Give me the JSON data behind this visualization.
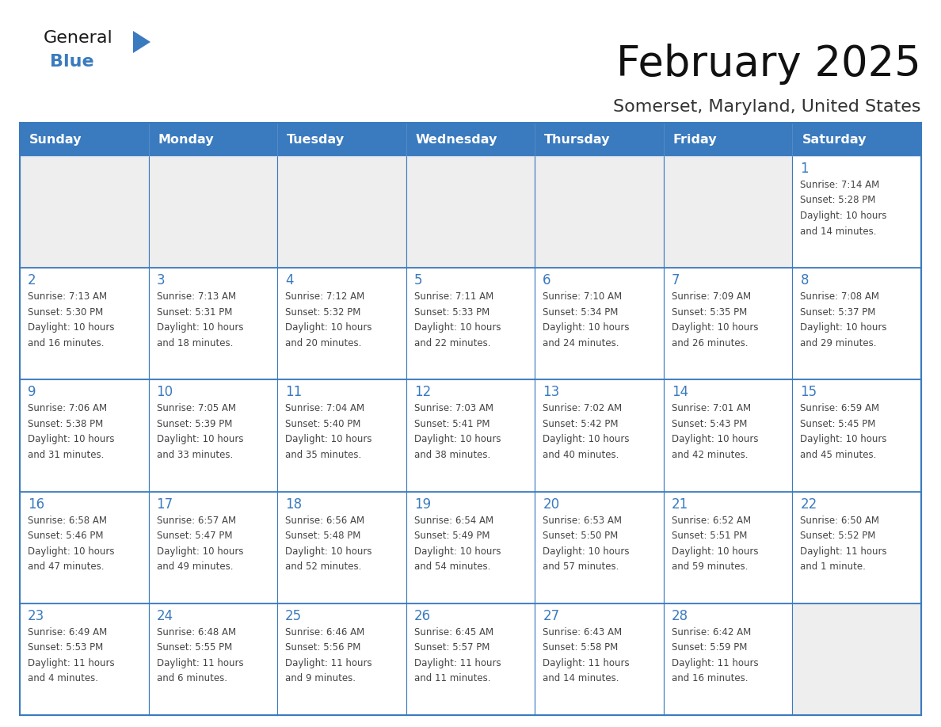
{
  "title": "February 2025",
  "subtitle": "Somerset, Maryland, United States",
  "header_color": "#3a7abf",
  "header_text_color": "#ffffff",
  "cell_bg_color": "#eeeeee",
  "cell_bg_white": "#ffffff",
  "cell_border_color": "#3a7abf",
  "day_number_color": "#3a7abf",
  "info_text_color": "#444444",
  "title_color": "#111111",
  "subtitle_color": "#333333",
  "days_of_week": [
    "Sunday",
    "Monday",
    "Tuesday",
    "Wednesday",
    "Thursday",
    "Friday",
    "Saturday"
  ],
  "weeks": [
    [
      {
        "day": null,
        "info": ""
      },
      {
        "day": null,
        "info": ""
      },
      {
        "day": null,
        "info": ""
      },
      {
        "day": null,
        "info": ""
      },
      {
        "day": null,
        "info": ""
      },
      {
        "day": null,
        "info": ""
      },
      {
        "day": 1,
        "info": "Sunrise: 7:14 AM\nSunset: 5:28 PM\nDaylight: 10 hours\nand 14 minutes."
      }
    ],
    [
      {
        "day": 2,
        "info": "Sunrise: 7:13 AM\nSunset: 5:30 PM\nDaylight: 10 hours\nand 16 minutes."
      },
      {
        "day": 3,
        "info": "Sunrise: 7:13 AM\nSunset: 5:31 PM\nDaylight: 10 hours\nand 18 minutes."
      },
      {
        "day": 4,
        "info": "Sunrise: 7:12 AM\nSunset: 5:32 PM\nDaylight: 10 hours\nand 20 minutes."
      },
      {
        "day": 5,
        "info": "Sunrise: 7:11 AM\nSunset: 5:33 PM\nDaylight: 10 hours\nand 22 minutes."
      },
      {
        "day": 6,
        "info": "Sunrise: 7:10 AM\nSunset: 5:34 PM\nDaylight: 10 hours\nand 24 minutes."
      },
      {
        "day": 7,
        "info": "Sunrise: 7:09 AM\nSunset: 5:35 PM\nDaylight: 10 hours\nand 26 minutes."
      },
      {
        "day": 8,
        "info": "Sunrise: 7:08 AM\nSunset: 5:37 PM\nDaylight: 10 hours\nand 29 minutes."
      }
    ],
    [
      {
        "day": 9,
        "info": "Sunrise: 7:06 AM\nSunset: 5:38 PM\nDaylight: 10 hours\nand 31 minutes."
      },
      {
        "day": 10,
        "info": "Sunrise: 7:05 AM\nSunset: 5:39 PM\nDaylight: 10 hours\nand 33 minutes."
      },
      {
        "day": 11,
        "info": "Sunrise: 7:04 AM\nSunset: 5:40 PM\nDaylight: 10 hours\nand 35 minutes."
      },
      {
        "day": 12,
        "info": "Sunrise: 7:03 AM\nSunset: 5:41 PM\nDaylight: 10 hours\nand 38 minutes."
      },
      {
        "day": 13,
        "info": "Sunrise: 7:02 AM\nSunset: 5:42 PM\nDaylight: 10 hours\nand 40 minutes."
      },
      {
        "day": 14,
        "info": "Sunrise: 7:01 AM\nSunset: 5:43 PM\nDaylight: 10 hours\nand 42 minutes."
      },
      {
        "day": 15,
        "info": "Sunrise: 6:59 AM\nSunset: 5:45 PM\nDaylight: 10 hours\nand 45 minutes."
      }
    ],
    [
      {
        "day": 16,
        "info": "Sunrise: 6:58 AM\nSunset: 5:46 PM\nDaylight: 10 hours\nand 47 minutes."
      },
      {
        "day": 17,
        "info": "Sunrise: 6:57 AM\nSunset: 5:47 PM\nDaylight: 10 hours\nand 49 minutes."
      },
      {
        "day": 18,
        "info": "Sunrise: 6:56 AM\nSunset: 5:48 PM\nDaylight: 10 hours\nand 52 minutes."
      },
      {
        "day": 19,
        "info": "Sunrise: 6:54 AM\nSunset: 5:49 PM\nDaylight: 10 hours\nand 54 minutes."
      },
      {
        "day": 20,
        "info": "Sunrise: 6:53 AM\nSunset: 5:50 PM\nDaylight: 10 hours\nand 57 minutes."
      },
      {
        "day": 21,
        "info": "Sunrise: 6:52 AM\nSunset: 5:51 PM\nDaylight: 10 hours\nand 59 minutes."
      },
      {
        "day": 22,
        "info": "Sunrise: 6:50 AM\nSunset: 5:52 PM\nDaylight: 11 hours\nand 1 minute."
      }
    ],
    [
      {
        "day": 23,
        "info": "Sunrise: 6:49 AM\nSunset: 5:53 PM\nDaylight: 11 hours\nand 4 minutes."
      },
      {
        "day": 24,
        "info": "Sunrise: 6:48 AM\nSunset: 5:55 PM\nDaylight: 11 hours\nand 6 minutes."
      },
      {
        "day": 25,
        "info": "Sunrise: 6:46 AM\nSunset: 5:56 PM\nDaylight: 11 hours\nand 9 minutes."
      },
      {
        "day": 26,
        "info": "Sunrise: 6:45 AM\nSunset: 5:57 PM\nDaylight: 11 hours\nand 11 minutes."
      },
      {
        "day": 27,
        "info": "Sunrise: 6:43 AM\nSunset: 5:58 PM\nDaylight: 11 hours\nand 14 minutes."
      },
      {
        "day": 28,
        "info": "Sunrise: 6:42 AM\nSunset: 5:59 PM\nDaylight: 11 hours\nand 16 minutes."
      },
      {
        "day": null,
        "info": ""
      }
    ]
  ],
  "logo_text_general": "General",
  "logo_text_blue": "Blue",
  "logo_general_color": "#1a1a1a",
  "logo_blue_color": "#3a7abf",
  "logo_triangle_color": "#3a7abf",
  "fig_width": 11.88,
  "fig_height": 9.18,
  "fig_dpi": 100
}
